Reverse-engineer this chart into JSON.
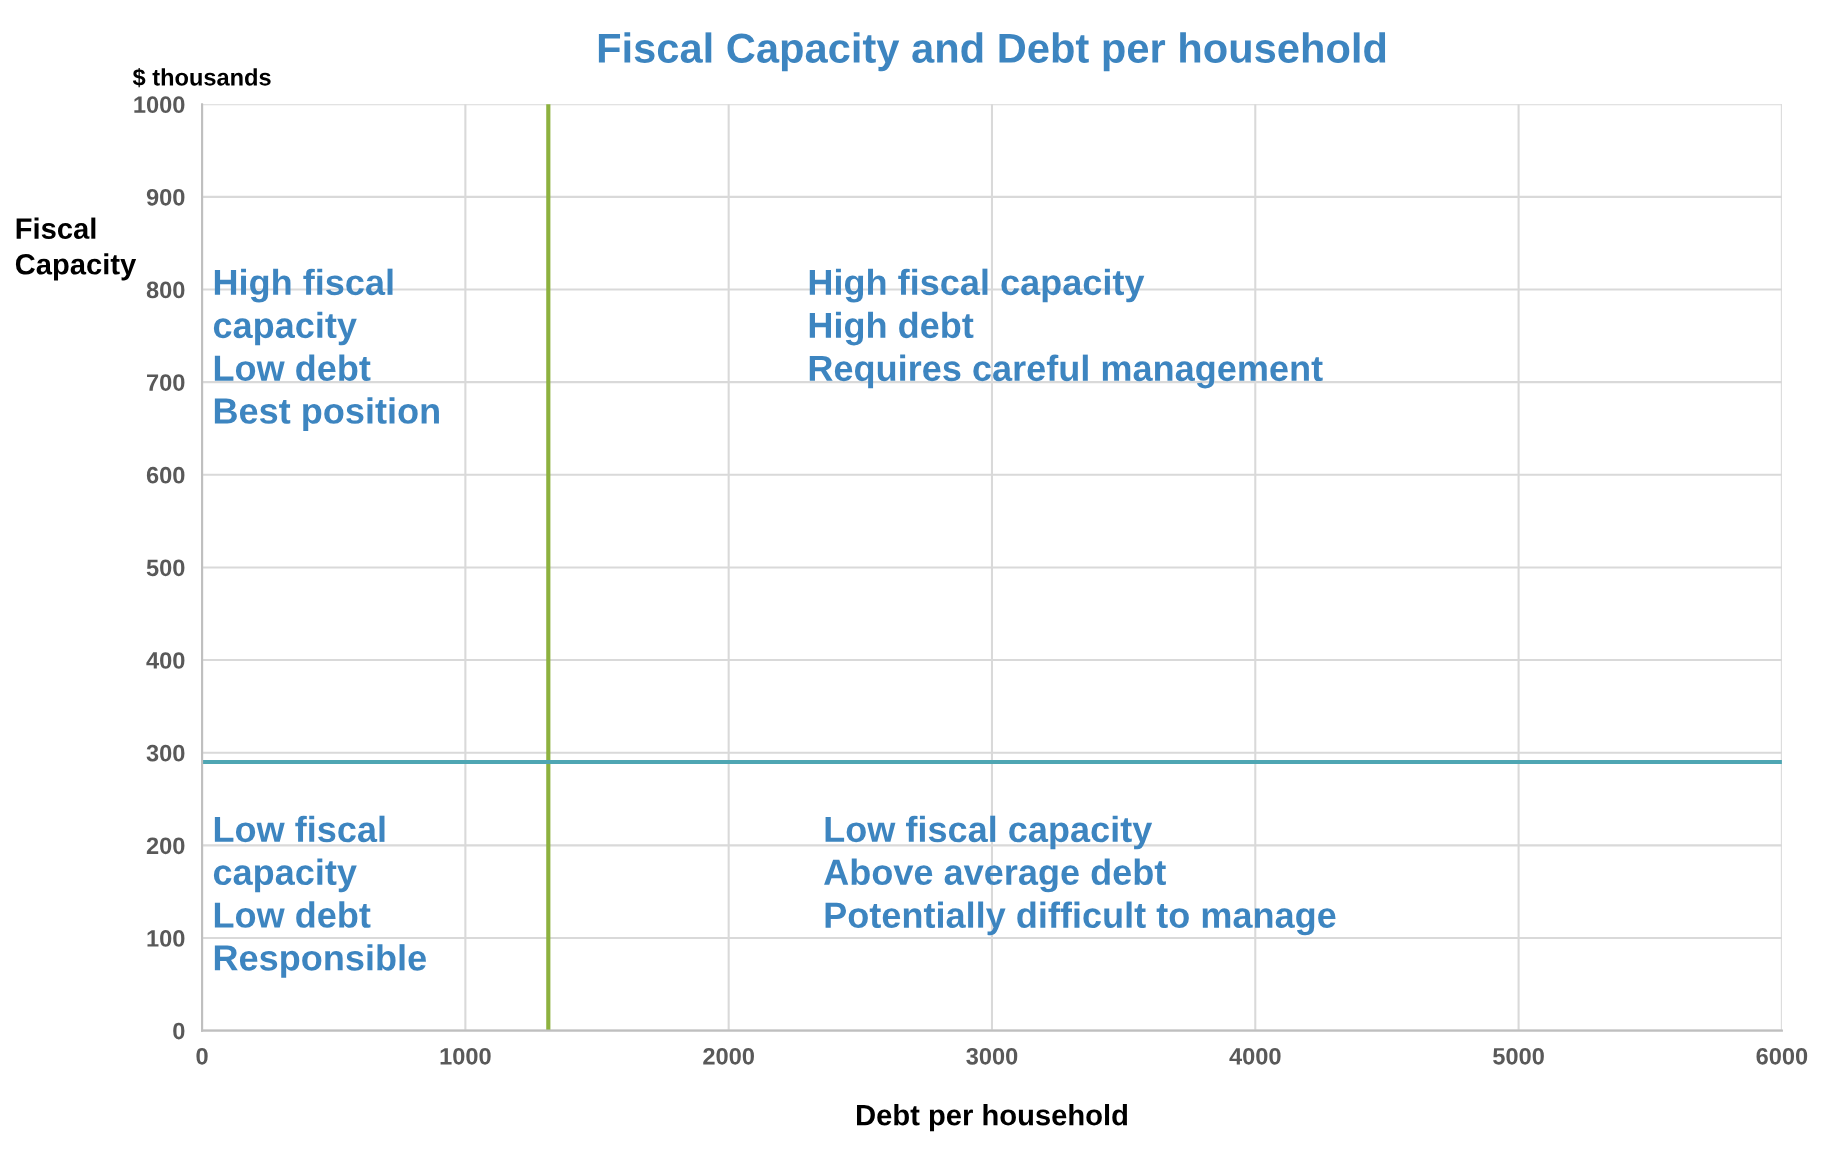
{
  "chart_data": {
    "type": "scatter",
    "title": "Fiscal Capacity and Debt per household",
    "xlabel": "Debt per household",
    "ylabel": "Fiscal\nCapacity",
    "xlim": [
      0,
      6000
    ],
    "xticks": [
      0,
      1000,
      2000,
      3000,
      4000,
      5000,
      6000
    ],
    "ylim": [
      0,
      1000
    ],
    "yticks": [
      0,
      100,
      200,
      300,
      400,
      500,
      600,
      700,
      800,
      900,
      1000
    ],
    "grid": true,
    "ref_lines": [
      {
        "axis": "x",
        "value": 1315,
        "color": "#8db13f"
      },
      {
        "axis": "y",
        "value": 290,
        "color": "#4fa6b3"
      }
    ],
    "annotations": [
      "$ thousands",
      "High fiscal\ncapacity\nLow debt\nBest position",
      "High fiscal capacity\nHigh debt\nRequires careful management",
      "Low fiscal\ncapacity\nLow debt\nResponsible",
      "Low fiscal capacity\nAbove average debt\nPotentially difficult to manage"
    ]
  }
}
